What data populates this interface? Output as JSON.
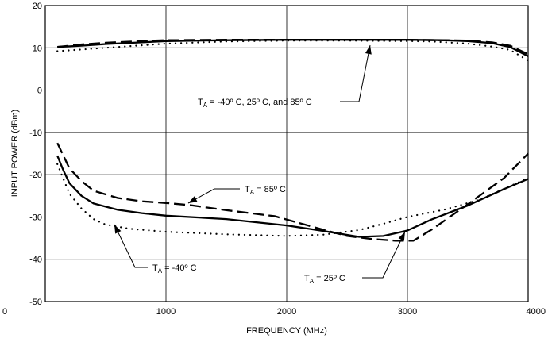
{
  "chart_data": {
    "type": "line",
    "title": "",
    "xlabel": "FREQUENCY (MHz)",
    "ylabel": "INPUT POWER (dBm)",
    "xlim": [
      0,
      4000
    ],
    "ylim": [
      -50,
      20
    ],
    "grid": true,
    "x_ticks": [
      "0",
      "1000",
      "2000",
      "3000",
      "4000"
    ],
    "y_ticks": [
      "20",
      "10",
      "0",
      "-10",
      "-20",
      "-30",
      "-40",
      "-50"
    ],
    "annotations": [
      {
        "id": "all",
        "label": "T",
        "sub": "A",
        "text": " = -40º C, 25º C, and 85º C"
      },
      {
        "id": "t85",
        "label": "T",
        "sub": "A",
        "text": " = 85º C"
      },
      {
        "id": "tm40",
        "label": "T",
        "sub": "A",
        "text": " = -40º C"
      },
      {
        "id": "t25",
        "label": "T",
        "sub": "A",
        "text": " = 25º C"
      }
    ],
    "series": [
      {
        "style": "solid",
        "x": [
          100,
          300,
          500,
          800,
          1000,
          1500,
          2000,
          2500,
          3000,
          3300,
          3500,
          3700,
          3850,
          4000
        ],
        "y": [
          10.2,
          10.5,
          10.9,
          11.3,
          11.6,
          11.8,
          11.9,
          11.9,
          11.9,
          11.8,
          11.6,
          11.1,
          10.2,
          8.0
        ]
      },
      {
        "style": "dashed",
        "x": [
          100,
          300,
          500,
          800,
          1000,
          1500,
          2000,
          2500,
          3000,
          3300,
          3500,
          3700,
          3850,
          4000
        ],
        "y": [
          10.2,
          10.8,
          11.2,
          11.6,
          11.8,
          11.9,
          11.9,
          11.9,
          11.9,
          11.8,
          11.7,
          11.3,
          10.5,
          8.5
        ]
      },
      {
        "style": "dotted",
        "x": [
          100,
          300,
          500,
          800,
          1000,
          1500,
          2000,
          2500,
          3000,
          3200,
          3500,
          3700,
          3850,
          4000
        ],
        "y": [
          9.2,
          9.6,
          10.0,
          10.6,
          11.0,
          11.5,
          11.7,
          11.7,
          11.6,
          11.5,
          11.0,
          10.3,
          9.5,
          7.0
        ]
      },
      {
        "style": "solid",
        "x": [
          100,
          150,
          200,
          300,
          400,
          600,
          800,
          1000,
          1500,
          2000,
          2300,
          2600,
          2800,
          3000,
          3200,
          3500,
          3800,
          4000
        ],
        "y": [
          -15.5,
          -19,
          -22,
          -25,
          -26.8,
          -28.3,
          -29.1,
          -29.7,
          -30.5,
          -32,
          -33.3,
          -34.7,
          -34.5,
          -33.2,
          -30.6,
          -27.3,
          -23.4,
          -21
        ]
      },
      {
        "style": "dashed",
        "x": [
          100,
          150,
          200,
          300,
          400,
          600,
          800,
          1000,
          1200,
          1500,
          1900,
          2100,
          2300,
          2500,
          2700,
          2900,
          3050,
          3200,
          3500,
          3800,
          4000
        ],
        "y": [
          -12.5,
          -15.5,
          -18.5,
          -21.5,
          -23.8,
          -25.5,
          -26.3,
          -26.7,
          -27.2,
          -28.4,
          -29.8,
          -31.4,
          -33,
          -34.5,
          -35.2,
          -35.6,
          -35.6,
          -33,
          -27,
          -20.8,
          -15
        ]
      },
      {
        "style": "dotted",
        "x": [
          100,
          150,
          200,
          300,
          400,
          500,
          700,
          1000,
          1500,
          2000,
          2300,
          2600,
          2800,
          3000,
          3300,
          3600,
          4000
        ],
        "y": [
          -17.5,
          -21,
          -24.5,
          -28,
          -30.5,
          -31.8,
          -32.8,
          -33.5,
          -34.1,
          -34.5,
          -34.2,
          -33.1,
          -31.6,
          -30,
          -28.3,
          -25.9,
          -20.8
        ]
      }
    ]
  }
}
